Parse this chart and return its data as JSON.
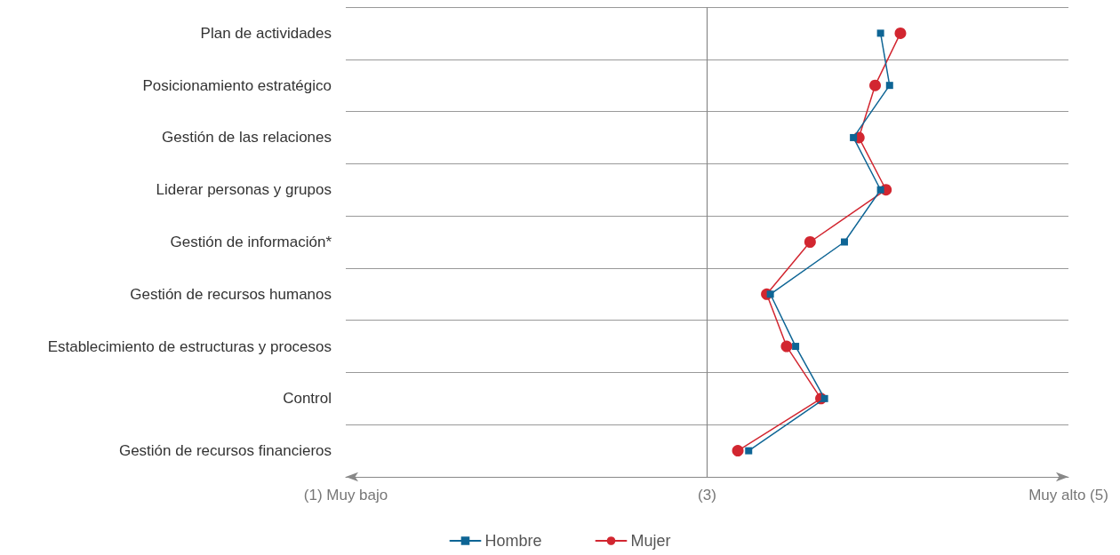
{
  "chart_data": {
    "type": "line",
    "orientation": "horizontal",
    "categories": [
      "Plan de actividades",
      "Posicionamiento estratégico",
      "Gestión de las relaciones",
      "Liderar personas y grupos",
      "Gestión de información*",
      "Gestión de recursos humanos",
      "Establecimiento de estructuras y procesos",
      "Control",
      "Gestión de recursos financieros"
    ],
    "series": [
      {
        "name": "Hombre",
        "color": "#0e6595",
        "marker": "square",
        "values": [
          3.96,
          4.01,
          3.81,
          3.96,
          3.76,
          3.35,
          3.49,
          3.65,
          3.23
        ]
      },
      {
        "name": "Mujer",
        "color": "#d22630",
        "marker": "circle",
        "values": [
          4.07,
          3.93,
          3.84,
          3.99,
          3.57,
          3.33,
          3.44,
          3.63,
          3.17
        ]
      }
    ],
    "xlim": [
      1,
      5
    ],
    "xticks": [
      {
        "value": 1,
        "label": "(1) Muy bajo"
      },
      {
        "value": 3,
        "label": "(3)"
      },
      {
        "value": 5,
        "label": "Muy alto (5)"
      }
    ],
    "ref_lines": [
      {
        "axis": "x",
        "value": 3,
        "color": "#888888"
      }
    ],
    "grid": "y",
    "legend": "bottom",
    "line_style": "solid"
  }
}
